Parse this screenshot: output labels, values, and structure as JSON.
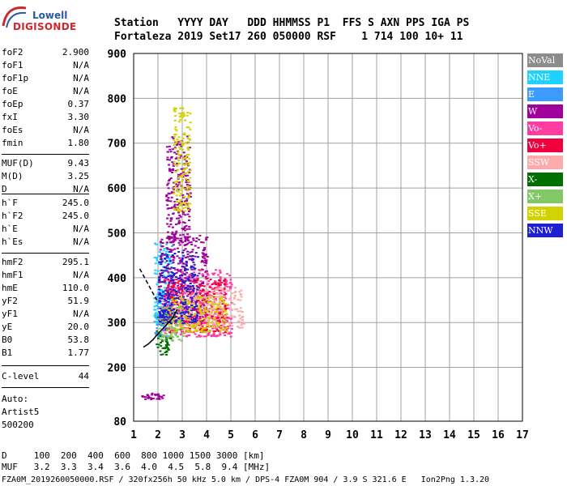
{
  "logo": {
    "line1": "Lowell",
    "line2": "DIGISONDE"
  },
  "header": {
    "line1": "Station   YYYY DAY   DDD HHMMSS P1  FFS S AXN PPS IGA PS",
    "line2": "Fortaleza 2019 Set17 260 050000 RSF    1 714 100 10+ 11"
  },
  "params": [
    {
      "label": "foF2",
      "value": "2.900"
    },
    {
      "label": "foF1",
      "value": "N/A"
    },
    {
      "label": "foF1p",
      "value": "N/A"
    },
    {
      "label": "foE",
      "value": "N/A"
    },
    {
      "label": "foEp",
      "value": "0.37"
    },
    {
      "label": "fxI",
      "value": "3.30"
    },
    {
      "label": "foEs",
      "value": "N/A"
    },
    {
      "label": "fmin",
      "value": "1.80"
    },
    {
      "label": "MUF(D)",
      "value": "9.43"
    },
    {
      "label": "M(D)",
      "value": "3.25"
    },
    {
      "label": "D",
      "value": "N/A"
    },
    {
      "label": "h`F",
      "value": "245.0"
    },
    {
      "label": "h`F2",
      "value": "245.0"
    },
    {
      "label": "h`E",
      "value": "N/A"
    },
    {
      "label": "h`Es",
      "value": "N/A"
    },
    {
      "label": "hmF2",
      "value": "295.1"
    },
    {
      "label": "hmF1",
      "value": "N/A"
    },
    {
      "label": "hmE",
      "value": "110.0"
    },
    {
      "label": "yF2",
      "value": "51.9"
    },
    {
      "label": "yF1",
      "value": "N/A"
    },
    {
      "label": "yE",
      "value": "20.0"
    },
    {
      "label": "B0",
      "value": "53.8"
    },
    {
      "label": "B1",
      "value": "1.77"
    },
    {
      "label": "C-level",
      "value": "44"
    }
  ],
  "auto": [
    "Auto:",
    "Artist5",
    "500200"
  ],
  "legend": [
    {
      "label": "NoVal",
      "color": "#8c8c8c"
    },
    {
      "label": "NNE",
      "color": "#1ed2ff"
    },
    {
      "label": "E",
      "color": "#3c9bff"
    },
    {
      "label": "W",
      "color": "#a0009b"
    },
    {
      "label": "Vo-",
      "color": "#ff3ca0"
    },
    {
      "label": "Vo+",
      "color": "#f0003c"
    },
    {
      "label": "SSW",
      "color": "#ffaaaa"
    },
    {
      "label": "X-",
      "color": "#006e00"
    },
    {
      "label": "X+",
      "color": "#82c864"
    },
    {
      "label": "SSE",
      "color": "#d2d200"
    },
    {
      "label": "NNW",
      "color": "#1e1ed2"
    }
  ],
  "bottom": {
    "d_line": "D     100  200  400  600  800 1000 1500 3000 [km]",
    "muf_line": "MUF   3.2  3.3  3.4  3.6  4.0  4.5  5.8  9.4 [MHz]",
    "footer": "FZA0M_2019260050000.RSF / 320fx256h 50 kHz 5.0 km / DPS-4 FZA0M 904 / 3.9 S 321.6 E   Ion2Png 1.3.20"
  },
  "chart_data": {
    "type": "scatter",
    "xlim": [
      1,
      17
    ],
    "ylim": [
      80,
      900
    ],
    "xticks": [
      1,
      2,
      3,
      4,
      5,
      6,
      7,
      8,
      9,
      10,
      11,
      12,
      13,
      14,
      15,
      16,
      17
    ],
    "yticks": [
      80,
      200,
      300,
      400,
      500,
      600,
      700,
      800,
      900
    ],
    "grid": true,
    "legend_position": "right",
    "clusters": [
      {
        "series": "X-",
        "color": "#006e00",
        "fmin": 1.9,
        "fmax": 2.5,
        "hmin": 230,
        "hmax": 320
      },
      {
        "series": "E",
        "color": "#3c9bff",
        "fmin": 1.8,
        "fmax": 2.3,
        "hmin": 270,
        "hmax": 370
      },
      {
        "series": "NNE",
        "color": "#1ed2ff",
        "fmin": 1.8,
        "fmax": 2.6,
        "hmin": 300,
        "hmax": 480
      },
      {
        "series": "W",
        "color": "#a0009b",
        "fmin": 2.0,
        "fmax": 4.0,
        "hmin": 300,
        "hmax": 500
      },
      {
        "series": "Vo-",
        "color": "#ff3ca0",
        "fmin": 2.2,
        "fmax": 5.0,
        "hmin": 270,
        "hmax": 420
      },
      {
        "series": "Vo+",
        "color": "#f0003c",
        "fmin": 2.3,
        "fmax": 4.8,
        "hmin": 280,
        "hmax": 400
      },
      {
        "series": "SSW",
        "color": "#ffaaaa",
        "fmin": 2.8,
        "fmax": 5.5,
        "hmin": 290,
        "hmax": 380
      },
      {
        "series": "SSE",
        "color": "#d2d200",
        "fmin": 2.4,
        "fmax": 4.8,
        "hmin": 280,
        "hmax": 360
      },
      {
        "series": "X+",
        "color": "#82c864",
        "fmin": 2.0,
        "fmax": 3.0,
        "hmin": 260,
        "hmax": 340
      },
      {
        "series": "NNW",
        "color": "#1e1ed2",
        "fmin": 2.0,
        "fmax": 3.6,
        "hmin": 300,
        "hmax": 460
      },
      {
        "series": "W",
        "color": "#a0009b",
        "fmin": 2.3,
        "fmax": 3.3,
        "hmin": 480,
        "hmax": 720
      },
      {
        "series": "SSE",
        "color": "#d2d200",
        "fmin": 2.6,
        "fmax": 3.3,
        "hmin": 550,
        "hmax": 780
      },
      {
        "series": "W",
        "color": "#a0009b",
        "fmin": 1.3,
        "fmax": 2.2,
        "hmin": 130,
        "hmax": 145
      }
    ],
    "trace": [
      [
        1.25,
        420
      ],
      [
        1.5,
        395
      ],
      [
        1.7,
        375
      ],
      [
        1.85,
        360
      ],
      [
        1.95,
        350
      ]
    ],
    "trace2": [
      [
        1.4,
        245
      ],
      [
        1.6,
        252
      ],
      [
        1.8,
        262
      ],
      [
        2.0,
        275
      ],
      [
        2.3,
        292
      ],
      [
        2.6,
        310
      ],
      [
        2.8,
        330
      ]
    ]
  }
}
